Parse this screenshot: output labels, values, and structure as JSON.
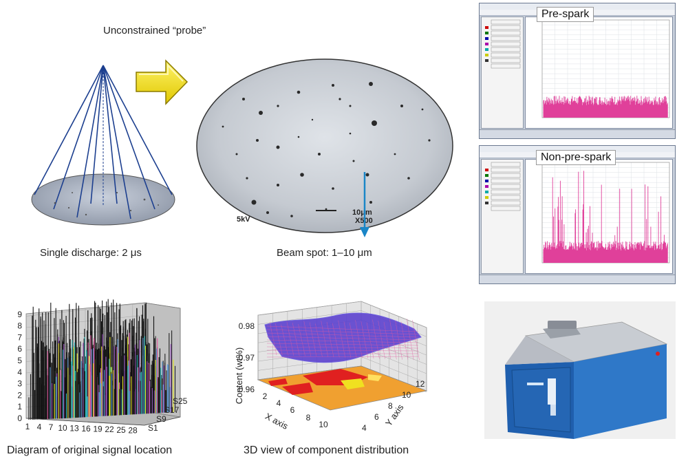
{
  "top_left": {
    "probe_label": "Unconstrained “probe”",
    "discharge_label": "Single discharge: 2 μs",
    "beam_label": "Beam spot: 1–10 μm",
    "scale_text": "10μm",
    "mag_text": "X500",
    "kv_text": "5kV"
  },
  "spectra": {
    "pre_spark_title": "Pre-spark",
    "non_pre_spark_title": "Non-pre-spark",
    "trace_color": "#e0409a"
  },
  "bottom": {
    "signal_caption": "Diagram of original signal location",
    "component_caption": "3D view of component distribution"
  },
  "chart_data": [
    {
      "type": "bar",
      "title": "",
      "ylim": [
        0,
        9
      ],
      "y_ticks": [
        "0",
        "1",
        "2",
        "3",
        "4",
        "5",
        "6",
        "7",
        "8",
        "9"
      ],
      "x_ticks": [
        "1",
        "4",
        "7",
        "10",
        "13",
        "16",
        "19",
        "22",
        "25",
        "28"
      ],
      "z_ticks": [
        "S1",
        "S9",
        "S17",
        "S25"
      ],
      "xlabel": "",
      "ylabel": ""
    },
    {
      "type": "surface",
      "title": "",
      "zlabel": "Content (wt%)",
      "z_ticks": [
        "0.96",
        "0.97",
        "0.98"
      ],
      "xlabel": "X axis",
      "x_ticks": [
        "2",
        "4",
        "6",
        "8",
        "10"
      ],
      "ylabel": "Y axis",
      "y_ticks": [
        "4",
        "6",
        "8",
        "10",
        "12"
      ],
      "zlim": [
        0.96,
        0.98
      ]
    }
  ]
}
